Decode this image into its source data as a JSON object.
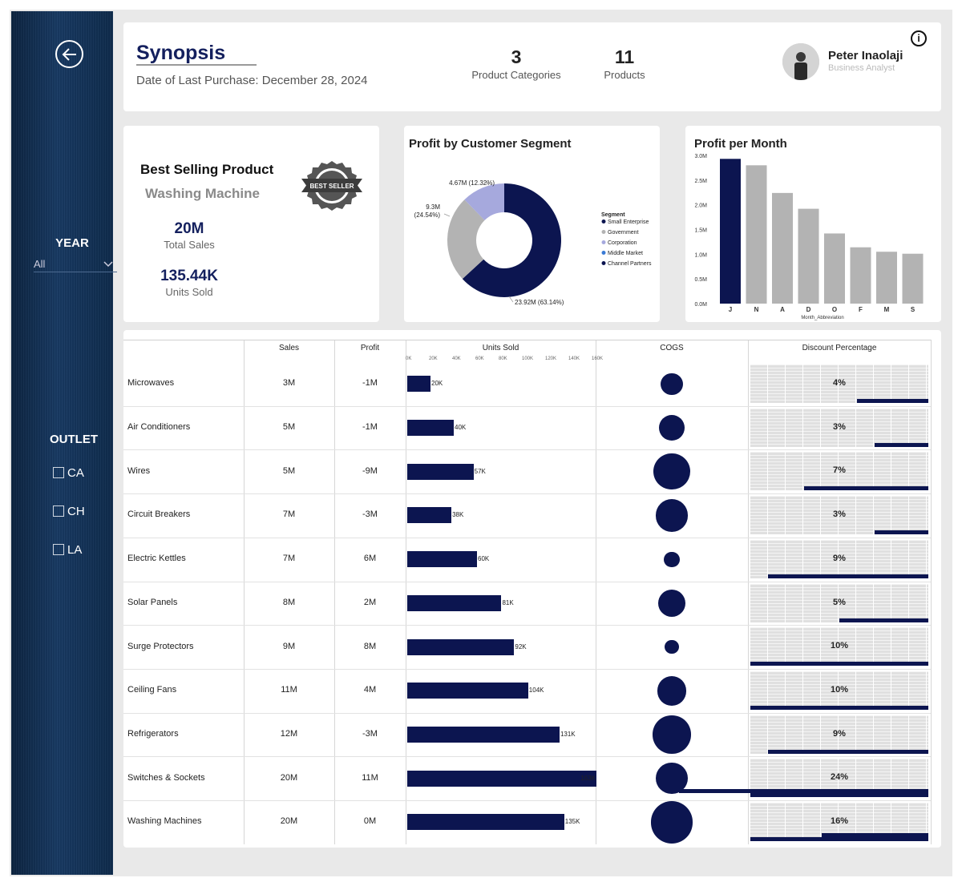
{
  "sidebar": {
    "back_icon": "arrow-left-icon",
    "year_label": "YEAR",
    "year_value": "All",
    "outlet_label": "OUTLET",
    "outlets": [
      "CA",
      "CH",
      "LA"
    ]
  },
  "header": {
    "title": "Synopsis",
    "subtitle": "Date of Last Purchase: December 28, 2024",
    "kpi_categories_value": "3",
    "kpi_categories_label": "Product Categories",
    "kpi_products_value": "11",
    "kpi_products_label": "Products",
    "user_name": "Peter Inaolaji",
    "user_role": "Business Analyst",
    "info_icon": "i"
  },
  "best_seller": {
    "title": "Best Selling Product",
    "product": "Washing Machine",
    "total_sales_value": "20M",
    "total_sales_label": "Total Sales",
    "units_sold_value": "135.44K",
    "units_sold_label": "Units Sold",
    "badge_text": "BEST SELLER"
  },
  "colors": {
    "navy": "#0c1550",
    "gray": "#b3b3b3",
    "lavender": "#a6a9dd",
    "blue": "#3a7bd5"
  },
  "chart_data": [
    {
      "type": "pie",
      "title": "Profit by Customer Segment",
      "legend_title": "Segment",
      "legend": [
        "Small Enterprise",
        "Government",
        "Corporation",
        "Middle Market",
        "Channel Partners"
      ],
      "legend_colors": [
        "#0c1550",
        "#b3b3b3",
        "#a6a9dd",
        "#3a7bd5",
        "#0c1550"
      ],
      "slices": [
        {
          "label": "23.92M (63.14%)",
          "value": 63.14,
          "color": "#0c1550"
        },
        {
          "label": "9.3M (24.54%)",
          "value": 24.54,
          "color": "#b3b3b3"
        },
        {
          "label": "4.67M (12.32%)",
          "value": 12.32,
          "color": "#a6a9dd"
        }
      ]
    },
    {
      "type": "bar",
      "title": "Profit per Month",
      "xlabel": "Month_Abbreviation",
      "categories": [
        "J",
        "N",
        "A",
        "D",
        "O",
        "F",
        "M",
        "S"
      ],
      "values": [
        2.93,
        2.8,
        2.24,
        1.92,
        1.42,
        1.14,
        1.05,
        1.01
      ],
      "yticks": [
        "3.0M",
        "2.5M",
        "2.0M",
        "1.5M",
        "1.0M",
        "0.5M",
        "0.0M"
      ],
      "ylim": [
        0,
        3.0
      ],
      "highlight_color": "#0c1550",
      "bar_color": "#b3b3b3"
    },
    {
      "type": "table",
      "columns": [
        "Sales",
        "Profit",
        "Units Sold",
        "COGS",
        "Discount Percentage"
      ],
      "units_axis": [
        "0K",
        "20K",
        "40K",
        "60K",
        "80K",
        "100K",
        "120K",
        "140K",
        "160K"
      ],
      "units_max": 160,
      "rows": [
        {
          "name": "Microwaves",
          "sales": "3M",
          "profit": "-1M",
          "units": 20,
          "units_label": "20K",
          "cogs": 0.24,
          "discount": 4,
          "discount_label": "4%"
        },
        {
          "name": "Air Conditioners",
          "sales": "5M",
          "profit": "-1M",
          "units": 40,
          "units_label": "40K",
          "cogs": 0.32,
          "discount": 3,
          "discount_label": "3%"
        },
        {
          "name": "Wires",
          "sales": "5M",
          "profit": "-9M",
          "units": 57,
          "units_label": "57K",
          "cogs": 0.52,
          "discount": 7,
          "discount_label": "7%"
        },
        {
          "name": "Circuit Breakers",
          "sales": "7M",
          "profit": "-3M",
          "units": 38,
          "units_label": "38K",
          "cogs": 0.44,
          "discount": 3,
          "discount_label": "3%"
        },
        {
          "name": "Electric Kettles",
          "sales": "7M",
          "profit": "6M",
          "units": 60,
          "units_label": "60K",
          "cogs": 0.11,
          "discount": 9,
          "discount_label": "9%"
        },
        {
          "name": "Solar Panels",
          "sales": "8M",
          "profit": "2M",
          "units": 81,
          "units_label": "81K",
          "cogs": 0.35,
          "discount": 5,
          "discount_label": "5%"
        },
        {
          "name": "Surge Protectors",
          "sales": "9M",
          "profit": "8M",
          "units": 92,
          "units_label": "92K",
          "cogs": 0.09,
          "discount": 10,
          "discount_label": "10%"
        },
        {
          "name": "Ceiling Fans",
          "sales": "11M",
          "profit": "4M",
          "units": 104,
          "units_label": "104K",
          "cogs": 0.39,
          "discount": 10,
          "discount_label": "10%"
        },
        {
          "name": "Refrigerators",
          "sales": "12M",
          "profit": "-3M",
          "units": 131,
          "units_label": "131K",
          "cogs": 0.55,
          "discount": 9,
          "discount_label": "9%"
        },
        {
          "name": "Switches & Sockets",
          "sales": "20M",
          "profit": "11M",
          "units": 163,
          "units_label": "163K",
          "cogs": 0.43,
          "discount": 24,
          "discount_label": "24%"
        },
        {
          "name": "Washing Machines",
          "sales": "20M",
          "profit": "0M",
          "units": 135,
          "units_label": "135K",
          "cogs": 0.63,
          "discount": 16,
          "discount_label": "16%"
        }
      ]
    }
  ]
}
